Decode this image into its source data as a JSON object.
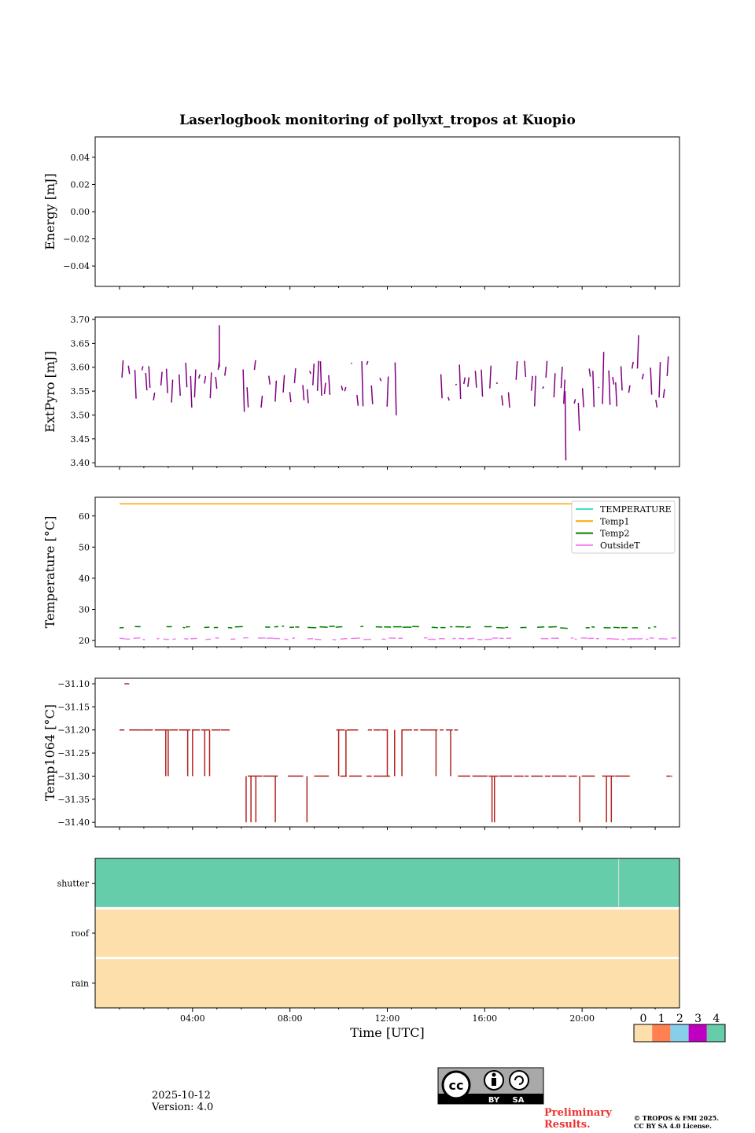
{
  "title": "Laserlogbook monitoring of pollyxt_tropos at Kuopio",
  "footer": {
    "date": "2025-10-12",
    "version": "Version: 4.0",
    "preliminary_line1": "Preliminary",
    "preliminary_line2": "Results.",
    "copyright_line1": "© TROPOS & FMI 2025.",
    "copyright_line2": "CC BY SA 4.0 License.",
    "cc_label": "cc",
    "by_label": "BY",
    "sa_label": "SA"
  },
  "colors": {
    "extpyro": "#800080",
    "temperature": "#40e0d0",
    "temp1": "#ffa500",
    "temp2": "#008000",
    "outsideT": "#ee82ee",
    "temp1064": "#b22222",
    "status_0": "#fddfab",
    "status_1": "#ff8051",
    "status_2": "#87ceeb",
    "status_3": "#c000c0",
    "status_4": "#66cdaa"
  },
  "chart_data": [
    {
      "type": "line",
      "name": "energy",
      "ylabel": "Energy [mJ]",
      "ylim": [
        -0.055,
        0.055
      ],
      "yticks": [
        0.04,
        0.02,
        0.0,
        -0.02,
        -0.04
      ],
      "yticklabels": [
        "0.04",
        "0.02",
        "0.00",
        "−0.02",
        "−0.04"
      ],
      "series": []
    },
    {
      "type": "line",
      "name": "extpyro",
      "ylabel": "ExtPyro [mJ]",
      "ylim": [
        3.392,
        3.705
      ],
      "yticks": [
        3.7,
        3.65,
        3.6,
        3.55,
        3.5,
        3.45,
        3.4
      ],
      "yticklabels": [
        "3.70",
        "3.65",
        "3.60",
        "3.55",
        "3.50",
        "3.45",
        "3.40"
      ],
      "x_range_hours": [
        1.1,
        23.7
      ],
      "gap_hours": [
        [
          12.4,
          13.3
        ],
        [
          13.4,
          14.2
        ]
      ],
      "series": [
        {
          "name": "ExtPyro",
          "mean": 3.565,
          "min": 3.405,
          "max": 3.688
        }
      ]
    },
    {
      "type": "line",
      "name": "temperature",
      "ylabel": "Temperature [°C]",
      "ylim": [
        18.0,
        66.0
      ],
      "yticks": [
        60,
        50,
        40,
        30,
        20
      ],
      "yticklabels": [
        "60",
        "50",
        "40",
        "30",
        "20"
      ],
      "legend_position": "upper right",
      "series": [
        {
          "name": "TEMPERATURE",
          "values": []
        },
        {
          "name": "Temp1",
          "x_hours": [
            1.0,
            23.7
          ],
          "values": [
            63.9,
            63.9
          ]
        },
        {
          "name": "Temp2",
          "mean": 24.3,
          "min": 24.0,
          "max": 25.3
        },
        {
          "name": "OutsideT",
          "mean": 20.6,
          "min": 20.3,
          "max": 21.0
        }
      ]
    },
    {
      "type": "line",
      "name": "temp1064",
      "ylabel": "Temp1064 [°C]",
      "ylim": [
        -31.41,
        -31.088
      ],
      "yticks": [
        -31.1,
        -31.15,
        -31.2,
        -31.25,
        -31.3,
        -31.35,
        -31.4
      ],
      "yticklabels": [
        "−31.10",
        "−31.15",
        "−31.20",
        "−31.25",
        "−31.30",
        "−31.35",
        "−31.40"
      ],
      "segments": [
        {
          "x0": 1.0,
          "x1": 1.2,
          "y": -31.2
        },
        {
          "x0": 1.2,
          "x1": 1.4,
          "y": -31.1
        },
        {
          "x0": 1.4,
          "x1": 5.6,
          "y": -31.2
        },
        {
          "x0": 5.6,
          "x1": 12.2,
          "y": -31.3
        },
        {
          "x0": 9.9,
          "x1": 10.8,
          "y": -31.2
        },
        {
          "x0": 11.2,
          "x1": 14.9,
          "y": -31.2
        },
        {
          "x0": 14.9,
          "x1": 23.7,
          "y": -31.3
        }
      ],
      "spikes": [
        {
          "x": 2.9,
          "y": -31.3
        },
        {
          "x": 3.0,
          "y": -31.3
        },
        {
          "x": 3.8,
          "y": -31.3
        },
        {
          "x": 4.0,
          "y": -31.3
        },
        {
          "x": 4.5,
          "y": -31.3
        },
        {
          "x": 4.7,
          "y": -31.3
        },
        {
          "x": 6.2,
          "y": -31.4
        },
        {
          "x": 6.4,
          "y": -31.4
        },
        {
          "x": 6.6,
          "y": -31.4
        },
        {
          "x": 7.4,
          "y": -31.4
        },
        {
          "x": 8.7,
          "y": -31.4
        },
        {
          "x": 10.0,
          "y": -31.3
        },
        {
          "x": 10.3,
          "y": -31.3
        },
        {
          "x": 12.0,
          "y": -31.3
        },
        {
          "x": 12.3,
          "y": -31.3
        },
        {
          "x": 12.6,
          "y": -31.3
        },
        {
          "x": 14.0,
          "y": -31.3
        },
        {
          "x": 14.6,
          "y": -31.3
        },
        {
          "x": 16.3,
          "y": -31.4
        },
        {
          "x": 16.4,
          "y": -31.4
        },
        {
          "x": 19.9,
          "y": -31.4
        },
        {
          "x": 21.0,
          "y": -31.4
        },
        {
          "x": 21.2,
          "y": -31.4
        }
      ]
    },
    {
      "type": "heatmap",
      "name": "status",
      "xlabel": "Time [UTC]",
      "xlim_hours": [
        0,
        24
      ],
      "xticks_hours": [
        4,
        8,
        12,
        16,
        20
      ],
      "xticklabels": [
        "04:00",
        "08:00",
        "12:00",
        "16:00",
        "20:00"
      ],
      "rows": [
        {
          "name": "shutter",
          "status": 4,
          "break_hour": 21.5
        },
        {
          "name": "roof",
          "status": 0
        },
        {
          "name": "rain",
          "status": 0
        }
      ],
      "colorbar": {
        "ticks": [
          0,
          1,
          2,
          3,
          4
        ],
        "ticklabels": [
          "0",
          "1",
          "2",
          "3",
          "4"
        ]
      }
    }
  ]
}
